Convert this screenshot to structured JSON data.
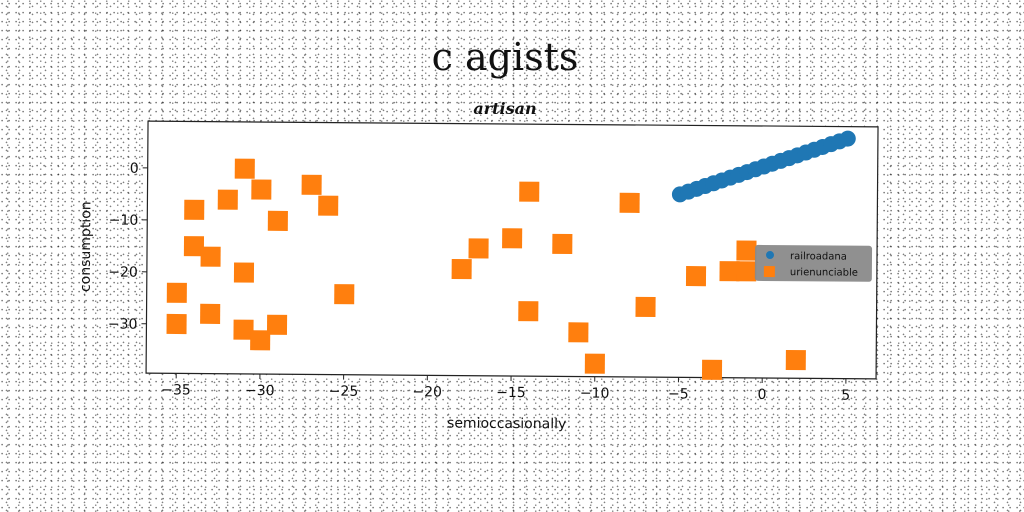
{
  "chart_data": {
    "type": "scatter",
    "title": "c agists",
    "subtitle": "artisan",
    "xlabel": "semioccasionally",
    "ylabel": "consumption",
    "xlim": [
      -36.8,
      6.8
    ],
    "ylim": [
      -39.5,
      9
    ],
    "xticks": [
      -35,
      -30,
      -25,
      -20,
      -15,
      -10,
      -5,
      0,
      5
    ],
    "xtick_labels": [
      "−35",
      "−30",
      "−25",
      "−20",
      "−15",
      "−10",
      "−5",
      "0",
      "5"
    ],
    "yticks": [
      0,
      -10,
      -20,
      -30
    ],
    "ytick_labels": [
      "0",
      "−10",
      "−20",
      "−30"
    ],
    "grid": false,
    "legend_position": "center-right",
    "series": [
      {
        "name": "railroadana",
        "color": "#1f77b4",
        "marker": "circle",
        "x": [
          -5.0,
          -4.5,
          -4.0,
          -3.5,
          -3.0,
          -2.5,
          -2.0,
          -1.5,
          -1.0,
          -0.5,
          0.0,
          0.5,
          1.0,
          1.5,
          2.0,
          2.5,
          3.0,
          3.5,
          4.0,
          4.5,
          5.0
        ],
        "y": [
          -4.3,
          -3.75,
          -3.2,
          -2.65,
          -2.1,
          -1.55,
          -1.0,
          -0.45,
          0.1,
          0.65,
          1.2,
          1.75,
          2.3,
          2.85,
          3.4,
          3.95,
          4.5,
          5.05,
          5.6,
          6.15,
          6.7
        ]
      },
      {
        "name": "urienunciable",
        "color": "#ff7f0e",
        "marker": "square",
        "x": [
          -35,
          -35,
          -34,
          -34,
          -33,
          -33,
          -32,
          -31,
          -31,
          -31,
          -30,
          -30,
          -29,
          -29,
          -27,
          -26,
          -25,
          -18,
          -17,
          -15,
          -14,
          -14,
          -12,
          -11,
          -10,
          -8,
          -7,
          -4,
          -3,
          -2,
          -1,
          -1,
          2
        ],
        "y": [
          -24,
          -30,
          -8,
          -15,
          -17,
          -28,
          -6,
          0,
          -20,
          -31,
          -33,
          -4,
          -10,
          -30,
          -3,
          -7,
          -24,
          -19,
          -15,
          -13,
          -4,
          -27,
          -14,
          -31,
          -37,
          -6,
          -26,
          -20,
          -38,
          -19,
          -19,
          -15,
          -36
        ]
      }
    ]
  }
}
